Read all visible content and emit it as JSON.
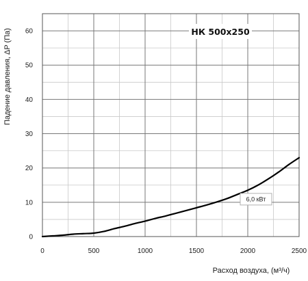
{
  "chart_data": {
    "type": "line",
    "title": "НК 500x250",
    "xlabel": "Расход воздуха, (м³/ч)",
    "ylabel": "Падение давления, ΔP (Па)",
    "xlim": [
      0,
      2500
    ],
    "ylim": [
      0,
      65
    ],
    "x_ticks": [
      0,
      500,
      1000,
      1500,
      2000,
      2500
    ],
    "y_ticks": [
      0,
      10,
      20,
      30,
      40,
      50,
      60
    ],
    "x_minor_step": 250,
    "y_minor_step": 5,
    "grid": true,
    "annotations": [
      {
        "text": "6,0 кВт",
        "x": 2080,
        "y": 10
      }
    ],
    "series": [
      {
        "color": "#000000",
        "x": [
          0,
          100,
          200,
          300,
          400,
          500,
          600,
          700,
          800,
          900,
          1000,
          1100,
          1200,
          1300,
          1400,
          1500,
          1600,
          1700,
          1800,
          1900,
          2000,
          2100,
          2200,
          2300,
          2400,
          2500
        ],
        "y": [
          0,
          0.2,
          0.4,
          0.7,
          0.85,
          1.0,
          1.5,
          2.3,
          3.0,
          3.8,
          4.5,
          5.3,
          6.0,
          6.8,
          7.6,
          8.4,
          9.2,
          10.1,
          11.1,
          12.3,
          13.5,
          15.0,
          16.8,
          18.8,
          21.0,
          23.0
        ]
      }
    ]
  }
}
